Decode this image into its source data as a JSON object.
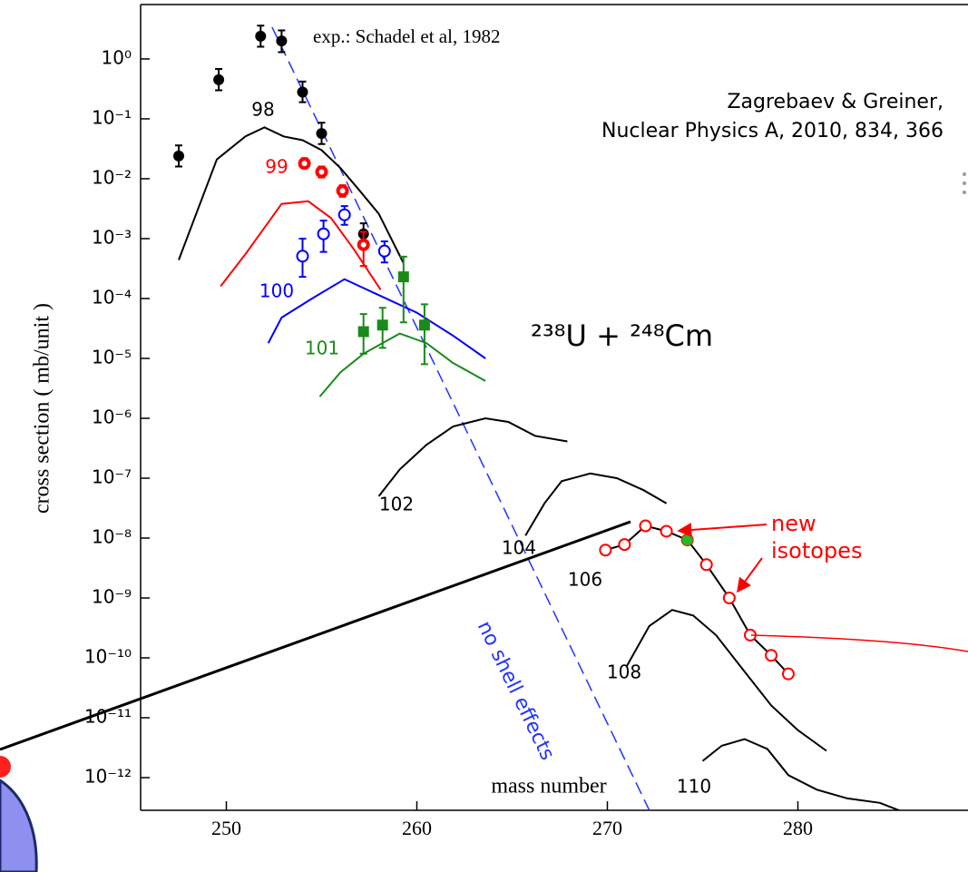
{
  "chart_data": {
    "type": "line",
    "y_label": "cross section  ( mb/unit )",
    "x_label": "mass number",
    "log_y": true,
    "xlim": [
      245.5,
      288.93
    ],
    "ylim": [
      2.85e-13,
      8.1
    ],
    "xticks": [
      250,
      260,
      270,
      280
    ],
    "yticks": [
      {
        "value": 1,
        "label": "10⁰"
      },
      {
        "value": 0.1,
        "label": "10⁻¹"
      },
      {
        "value": 0.01,
        "label": "10⁻²"
      },
      {
        "value": 0.001,
        "label": "10⁻³"
      },
      {
        "value": 0.0001,
        "label": "10⁻⁴"
      },
      {
        "value": 1e-05,
        "label": "10⁻⁵"
      },
      {
        "value": 1e-06,
        "label": "10⁻⁶"
      },
      {
        "value": 1e-07,
        "label": "10⁻⁷"
      },
      {
        "value": 1e-08,
        "label": "10⁻⁸"
      },
      {
        "value": 1e-09,
        "label": "10⁻⁹"
      },
      {
        "value": 1e-10,
        "label": "10⁻¹⁰"
      },
      {
        "value": 1e-11,
        "label": "10⁻¹¹"
      },
      {
        "value": 1e-12,
        "label": "10⁻¹²"
      }
    ],
    "annotations": {
      "experiment": "exp.: Schadel et al, 1982",
      "citation_1": "Zagrebaev & Greiner,",
      "citation_2": "Nuclear Physics A, 2010, 834, 366",
      "reaction": "²³⁸U + ²⁴⁸Cm",
      "new_1": "new",
      "new_2": "isotopes"
    },
    "series": [
      {
        "name": "98",
        "color": "#000000",
        "x": [
          247.5,
          249.5,
          251,
          252,
          253,
          254,
          255,
          256,
          257,
          258,
          259.3
        ],
        "values": [
          0.00044,
          0.021,
          0.051,
          0.072,
          0.051,
          0.044,
          0.03,
          0.015,
          0.0063,
          0.0026,
          0.00039
        ]
      },
      {
        "name": "99",
        "color": "#ff0000",
        "x": [
          249.7,
          251,
          252.9,
          254.3,
          255.5,
          256.7,
          258.1
        ],
        "values": [
          0.00016,
          0.00055,
          0.0038,
          0.0042,
          0.0022,
          0.00066,
          0.00014
        ]
      },
      {
        "name": "100",
        "color": "#0000ff",
        "x": [
          252.2,
          252.9,
          254.5,
          256.2,
          258.1,
          260,
          261.9,
          263.6
        ],
        "values": [
          1.8e-05,
          4.8e-05,
          0.0001,
          0.00021,
          0.00011,
          5.8e-05,
          2.4e-05,
          1e-05
        ]
      },
      {
        "name": "101",
        "color": "#1a8a1a",
        "x": [
          254.9,
          256,
          257.2,
          259.1,
          260.5,
          261.9,
          263.6
        ],
        "values": [
          2.3e-06,
          5.9e-06,
          1.2e-05,
          2.6e-05,
          1.8e-05,
          8.4e-06,
          4.2e-06
        ]
      },
      {
        "name": "102",
        "color": "#000000",
        "x": [
          258,
          259.1,
          260.5,
          261.9,
          263.6,
          264.8,
          266.2,
          267.9
        ],
        "values": [
          5e-08,
          1.4e-07,
          3.6e-07,
          7.3e-07,
          1e-06,
          8.7e-07,
          5.1e-07,
          4.1e-07
        ]
      },
      {
        "name": "104",
        "color": "#000000",
        "x": [
          265.7,
          266.7,
          267.6,
          269.1,
          270.5,
          271.9,
          273.1
        ],
        "values": [
          1.1e-08,
          3.8e-08,
          8.9e-08,
          1.2e-07,
          1e-07,
          6.3e-08,
          3.8e-08
        ]
      },
      {
        "name": "106",
        "color": "#000000",
        "marker": "open-circle",
        "marker_color": "#ff0000",
        "x": [
          269.9,
          270.9,
          272,
          273.1,
          274.2,
          275.2,
          276.4,
          277.5,
          278.6,
          279.5
        ],
        "values": [
          6.3e-09,
          7.8e-09,
          1.6e-08,
          1.3e-08,
          9.3e-09,
          3.6e-09,
          1e-09,
          2.4e-10,
          1.1e-10,
          5.4e-11
        ]
      },
      {
        "name": "108",
        "color": "#000000",
        "x": [
          271,
          272.2,
          273.4,
          274.5,
          275.7,
          277.2,
          278.6,
          280,
          281.5
        ],
        "values": [
          7.1e-11,
          3.4e-10,
          6.3e-10,
          5.1e-10,
          2.4e-10,
          5.9e-11,
          1.6e-11,
          6.2e-12,
          2.8e-12
        ]
      },
      {
        "name": "110",
        "color": "#000000",
        "x": [
          275,
          276,
          277.2,
          278.4,
          279.5,
          281,
          282.6,
          284.3,
          285.9
        ],
        "values": [
          1.9e-12,
          3.4e-12,
          4.4e-12,
          3e-12,
          1.1e-12,
          6.3e-13,
          4.5e-13,
          3.8e-13,
          2.4e-13
        ]
      }
    ],
    "points": [
      {
        "color": "#000000",
        "marker": "filled-circle",
        "x": [
          247.5,
          249.6,
          251.8,
          252.9,
          254,
          255,
          257.2
        ],
        "values": [
          0.024,
          0.45,
          2.4,
          2.0,
          0.28,
          0.057,
          0.0012
        ],
        "lower": [
          0.016,
          0.3,
          1.6,
          1.3,
          0.19,
          0.038,
          0.0008
        ],
        "upper": [
          0.036,
          0.68,
          3.6,
          3.0,
          0.42,
          0.086,
          0.0018
        ]
      },
      {
        "color": "#ff0000",
        "marker": "thick-circle",
        "x": [
          254.1,
          255,
          256.1,
          257.2
        ],
        "values": [
          0.018,
          0.013,
          0.0063,
          0.00079
        ],
        "lower": [
          0.015,
          0.0105,
          0.005,
          0.00035
        ],
        "upper": [
          0.022,
          0.016,
          0.0078,
          0.0013
        ]
      },
      {
        "color": "#0000ff",
        "marker": "open-circle",
        "x": [
          254,
          255.1,
          256.2,
          258.3
        ],
        "values": [
          0.00051,
          0.0012,
          0.0025,
          0.00062
        ],
        "lower": [
          0.00023,
          0.0006,
          0.0017,
          0.0004
        ],
        "upper": [
          0.001,
          0.002,
          0.0035,
          0.0009
        ]
      },
      {
        "color": "#1a8a1a",
        "marker": "square",
        "x": [
          257.2,
          258.2,
          259.3,
          260.4
        ],
        "values": [
          2.8e-05,
          3.6e-05,
          0.00023,
          3.6e-05
        ],
        "lower": [
          1.2e-05,
          1.5e-05,
          4e-05,
          8e-06
        ],
        "upper": [
          5.5e-05,
          7e-05,
          0.0005,
          8e-05
        ]
      },
      {
        "color": "#22bb22",
        "marker": "filled-circle",
        "x": [
          274.2
        ],
        "values": [
          9.3e-09
        ]
      }
    ],
    "reference": {
      "label": "no shell effects",
      "color": "#2233ff",
      "x": [
        252.4,
        272.2
      ],
      "values": [
        3.4,
        2.85e-13
      ]
    }
  }
}
